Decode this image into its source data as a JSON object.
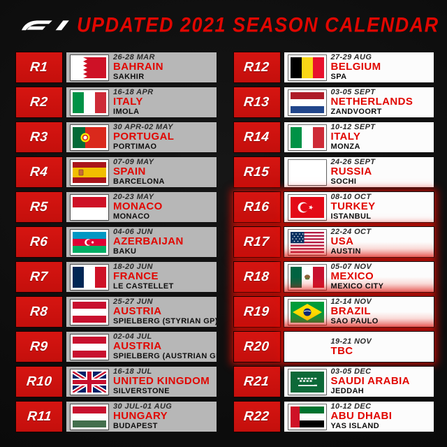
{
  "header": {
    "logo": "f1-logo",
    "title": "UPDATED 2021 SEASON CALENDAR"
  },
  "colors": {
    "accent_red": "#E10600",
    "round_box_red": "#CE1310",
    "row_gray": "#B7B7B7",
    "row_white": "#FCFCFC",
    "background": "#0D0D0D",
    "highlight_glow": "#EA0E04"
  },
  "races": [
    {
      "round": "R1",
      "date": "26-28 MAR",
      "country": "BAHRAIN",
      "location": "SAKHIR",
      "flag": "bahrain",
      "highlighted": false,
      "bottom_glow": false
    },
    {
      "round": "R2",
      "date": "16-18 APR",
      "country": "ITALY",
      "location": "IMOLA",
      "flag": "italy",
      "highlighted": false,
      "bottom_glow": false
    },
    {
      "round": "R3",
      "date": "30 APR-02 MAY",
      "country": "PORTUGAL",
      "location": "PORTIMAO",
      "flag": "portugal",
      "highlighted": false,
      "bottom_glow": false
    },
    {
      "round": "R4",
      "date": "07-09 MAY",
      "country": "SPAIN",
      "location": "BARCELONA",
      "flag": "spain",
      "highlighted": false,
      "bottom_glow": false
    },
    {
      "round": "R5",
      "date": "20-23 MAY",
      "country": "MONACO",
      "location": "MONACO",
      "flag": "monaco",
      "highlighted": false,
      "bottom_glow": false
    },
    {
      "round": "R6",
      "date": "04-06 JUN",
      "country": "AZERBAIJAN",
      "location": "BAKU",
      "flag": "azerbaijan",
      "highlighted": false,
      "bottom_glow": false
    },
    {
      "round": "R7",
      "date": "18-20 JUN",
      "country": "FRANCE",
      "location": "LE CASTELLET",
      "flag": "france",
      "highlighted": false,
      "bottom_glow": false
    },
    {
      "round": "R8",
      "date": "25-27 JUN",
      "country": "AUSTRIA",
      "location": "SPIELBERG (STYRIAN GP)",
      "flag": "austria",
      "highlighted": false,
      "bottom_glow": false
    },
    {
      "round": "R9",
      "date": "02-04 JUL",
      "country": "AUSTRIA",
      "location": "SPIELBERG (AUSTRIAN GP)",
      "flag": "austria",
      "highlighted": false,
      "bottom_glow": false
    },
    {
      "round": "R10",
      "date": "16-18 JUL",
      "country": "UNITED KINGDOM",
      "location": "SILVERSTONE",
      "flag": "uk",
      "highlighted": false,
      "bottom_glow": false
    },
    {
      "round": "R11",
      "date": "30 JUL-01 AUG",
      "country": "HUNGARY",
      "location": "BUDAPEST",
      "flag": "hungary",
      "highlighted": false,
      "bottom_glow": false
    },
    {
      "round": "R12",
      "date": "27-29 AUG",
      "country": "BELGIUM",
      "location": "SPA",
      "flag": "belgium",
      "highlighted": false,
      "bottom_glow": false
    },
    {
      "round": "R13",
      "date": "03-05 SEPT",
      "country": "NETHERLANDS",
      "location": "ZANDVOORT",
      "flag": "netherlands",
      "highlighted": false,
      "bottom_glow": false
    },
    {
      "round": "R14",
      "date": "10-12 SEPT",
      "country": "ITALY",
      "location": "MONZA",
      "flag": "italy",
      "highlighted": false,
      "bottom_glow": false
    },
    {
      "round": "R15",
      "date": "24-26 SEPT",
      "country": "RUSSIA",
      "location": "SOCHI",
      "flag": "neutral-white",
      "highlighted": false,
      "bottom_glow": false
    },
    {
      "round": "R16",
      "date": "08-10 OCT",
      "country": "TURKEY",
      "location": "ISTANBUL",
      "flag": "turkey",
      "highlighted": true,
      "bottom_glow": false
    },
    {
      "round": "R17",
      "date": "22-24 OCT",
      "country": "USA",
      "location": "AUSTIN",
      "flag": "usa",
      "highlighted": true,
      "bottom_glow": true
    },
    {
      "round": "R18",
      "date": "05-07 NOV",
      "country": "MEXICO",
      "location": "MEXICO CITY",
      "flag": "mexico",
      "highlighted": true,
      "bottom_glow": true
    },
    {
      "round": "R19",
      "date": "12-14 NOV",
      "country": "BRAZIL",
      "location": "SAO PAULO",
      "flag": "brazil",
      "highlighted": true,
      "bottom_glow": true
    },
    {
      "round": "R20",
      "date": "19-21 NOV",
      "country": "TBC",
      "location": "",
      "flag": "none",
      "highlighted": true,
      "bottom_glow": false
    },
    {
      "round": "R21",
      "date": "03-05 DEC",
      "country": "SAUDI ARABIA",
      "location": "JEDDAH",
      "flag": "saudi-arabia",
      "highlighted": false,
      "bottom_glow": false
    },
    {
      "round": "R22",
      "date": "10-12 DEC",
      "country": "ABU DHABI",
      "location": "YAS ISLAND",
      "flag": "uae",
      "highlighted": false,
      "bottom_glow": false
    }
  ],
  "layout_split": {
    "left_column_rounds": "R1-R11",
    "right_column_rounds": "R12-R22"
  }
}
